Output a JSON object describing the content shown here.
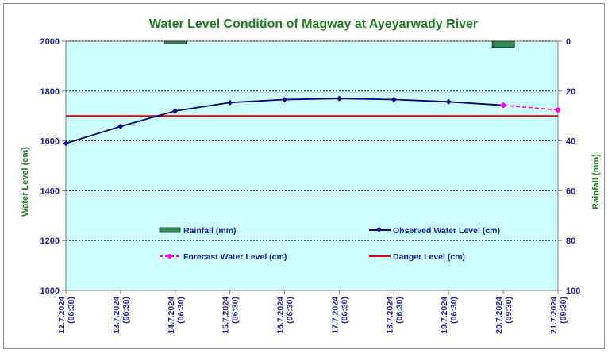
{
  "chart_data": {
    "type": "line",
    "title": "Water Level Condition of Magway at Ayeyarwady River",
    "ylabel": "Water Level (cm)",
    "y2label": "Rainfall (mm)",
    "ylim": [
      1000,
      2000
    ],
    "yticks": [
      1000,
      1200,
      1400,
      1600,
      1800,
      2000
    ],
    "y2lim": [
      0,
      100
    ],
    "y2ticks": [
      0,
      20,
      40,
      60,
      80,
      100
    ],
    "y2_inverted": true,
    "grid": "horizontal dashed",
    "categories": [
      {
        "date": "12.7.2024",
        "time": "(06:30)"
      },
      {
        "date": "13.7.2024",
        "time": "(06:30)"
      },
      {
        "date": "14.7.2024",
        "time": "(06:30)"
      },
      {
        "date": "15.7.2024",
        "time": "(06:30)"
      },
      {
        "date": "16.7.2024",
        "time": "(06:30)"
      },
      {
        "date": "17.7.2024",
        "time": "(06:30)"
      },
      {
        "date": "18.7.2024",
        "time": "(06:30)"
      },
      {
        "date": "19.7.2024",
        "time": "(06:30)"
      },
      {
        "date": "20.7.2024",
        "time": "(09:30)"
      },
      {
        "date": "21.7.2024",
        "time": "(09:30)"
      }
    ],
    "series": [
      {
        "name": "Observed Water Level (cm)",
        "kind": "line",
        "color": "#000080",
        "values": [
          1590,
          1658,
          1720,
          1754,
          1766,
          1770,
          1766,
          1757,
          1743,
          null
        ]
      },
      {
        "name": "Forecast Water Level (cm)",
        "kind": "line-dashed",
        "color": "#ff00ff",
        "values": [
          null,
          null,
          null,
          null,
          null,
          null,
          null,
          null,
          1743,
          1724
        ]
      },
      {
        "name": "Danger Level (cm)",
        "kind": "constant-line",
        "color": "#e00000",
        "value": 1700
      },
      {
        "name": "Rainfall (mm)",
        "kind": "bar",
        "axis": "right",
        "color": "#2e8b57",
        "values": [
          0,
          0,
          1,
          0,
          0,
          0,
          0,
          0,
          2.5,
          0
        ]
      }
    ],
    "legend": "inside plot, lower area, two columns"
  }
}
